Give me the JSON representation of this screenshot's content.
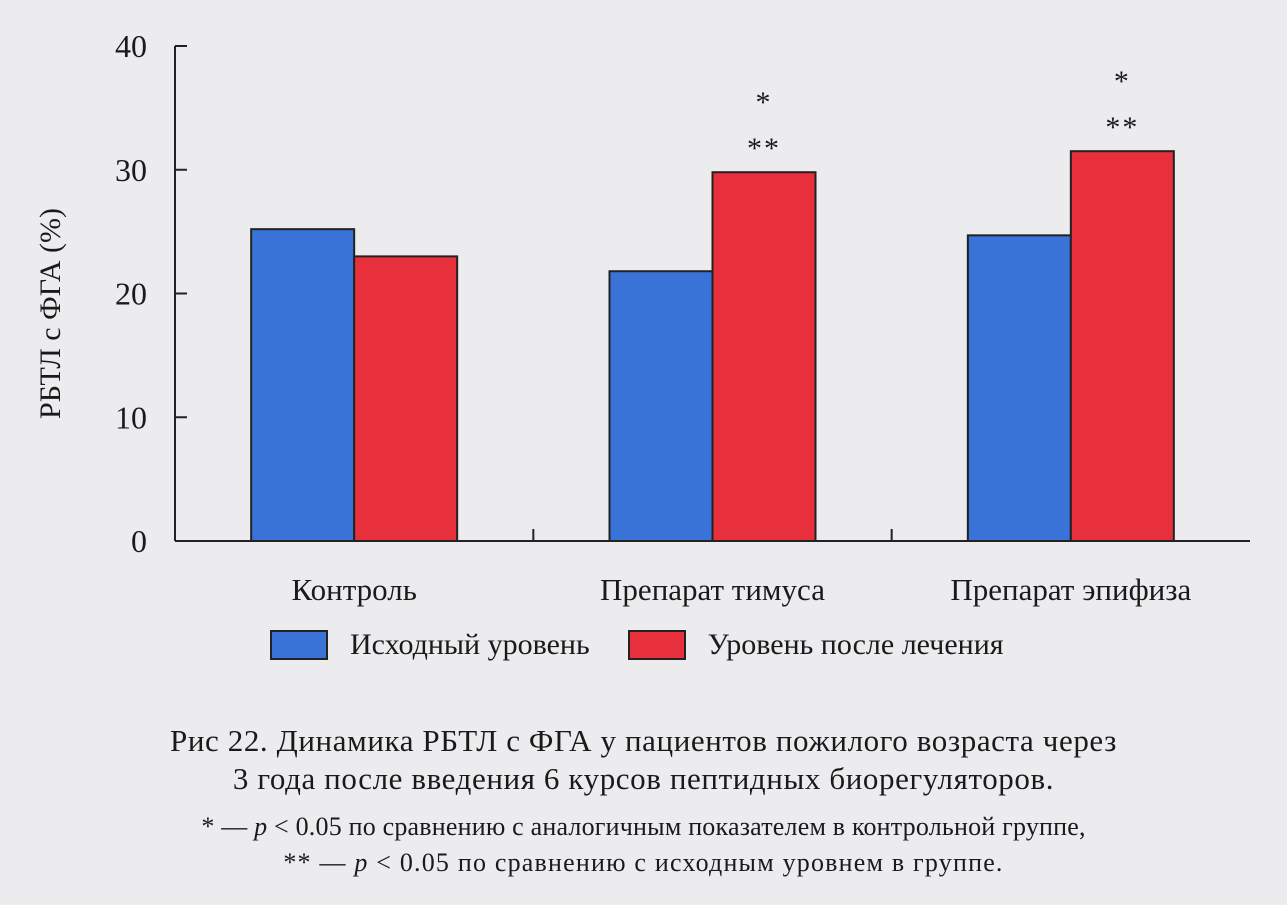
{
  "chart_data": {
    "type": "bar",
    "categories": [
      "Контроль",
      "Препарат тимуса",
      "Препарат эпифиза"
    ],
    "series": [
      {
        "name": "Исходный уровень",
        "values": [
          25.2,
          21.8,
          24.7
        ],
        "color": "#3a73d8",
        "significance": [
          "",
          "",
          ""
        ]
      },
      {
        "name": "Уровень после лечения",
        "values": [
          23.0,
          29.8,
          31.5
        ],
        "color": "#e8303c",
        "significance": [
          "",
          "*\n**",
          "*\n**"
        ]
      }
    ],
    "ylabel": "РБТЛ с ФГА (%)",
    "xlabel": "",
    "ylim": [
      0,
      40
    ],
    "yticks": [
      0,
      10,
      20,
      30,
      40
    ],
    "grid": false,
    "legend_position": "bottom"
  },
  "caption": {
    "line1": "Рис 22. Динамика РБТЛ с ФГА у пациентов пожилого возраста через",
    "line2": "3 года после введения 6 курсов пептидных биорегуляторов."
  },
  "notes": {
    "line1_mark": "* — ",
    "line1_p": "p",
    "line1_text": " < 0.05 по сравнению с аналогичным показателем в контрольной группе,",
    "line2_mark": "** — ",
    "line2_p": "p",
    "line2_text": " < 0.05 по сравнению с исходным уровнем в группе."
  }
}
